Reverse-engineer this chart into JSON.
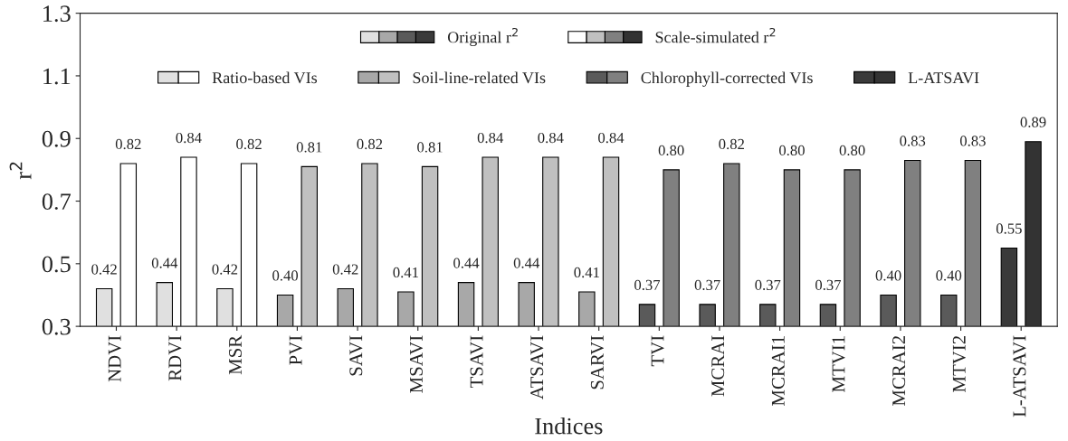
{
  "chart_data": {
    "type": "bar",
    "xlabel": "Indices",
    "ylabel": "r$^{2}$",
    "categories": [
      "NDVI",
      "RDVI",
      "MSR",
      "PVI",
      "SAVI",
      "MSAVI",
      "TSAVI",
      "ATSAVI",
      "SARVI",
      "TVI",
      "MCRAI",
      "MCRAI1",
      "MTVI1",
      "MCRAI2",
      "MTVI2",
      "L-ATSAVI"
    ],
    "series": [
      {
        "name": "Original r$^{2}$",
        "colors": [
          "#e0e0e0",
          "#e0e0e0",
          "#e0e0e0",
          "#a8a8a8",
          "#a8a8a8",
          "#a8a8a8",
          "#a8a8a8",
          "#a8a8a8",
          "#a8a8a8",
          "#5a5a5a",
          "#5a5a5a",
          "#5a5a5a",
          "#5a5a5a",
          "#5a5a5a",
          "#5a5a5a",
          "#3a3a3a"
        ],
        "values": [
          0.42,
          0.44,
          0.42,
          0.4,
          0.42,
          0.41,
          0.44,
          0.44,
          0.41,
          0.37,
          0.37,
          0.37,
          0.37,
          0.4,
          0.4,
          0.55
        ],
        "value_labels": [
          "0.42",
          "0.44",
          "0.42",
          "0.40",
          "0.42",
          "0.41",
          "0.44",
          "0.44",
          "0.41",
          "0.37",
          "0.37",
          "0.37",
          "0.37",
          "0.40",
          "0.40",
          "0.55"
        ]
      },
      {
        "name": "Scale-simulated r$^{2}$",
        "colors": [
          "#ffffff",
          "#ffffff",
          "#ffffff",
          "#c0c0c0",
          "#c0c0c0",
          "#c0c0c0",
          "#c0c0c0",
          "#c0c0c0",
          "#c0c0c0",
          "#808080",
          "#808080",
          "#808080",
          "#808080",
          "#808080",
          "#808080",
          "#333333"
        ],
        "values": [
          0.82,
          0.84,
          0.82,
          0.81,
          0.82,
          0.81,
          0.84,
          0.84,
          0.84,
          0.8,
          0.82,
          0.8,
          0.8,
          0.83,
          0.83,
          0.89
        ],
        "value_labels": [
          "0.82",
          "0.84",
          "0.82",
          "0.81",
          "0.82",
          "0.81",
          "0.84",
          "0.84",
          "0.84",
          "0.80",
          "0.82",
          "0.80",
          "0.80",
          "0.83",
          "0.83",
          "0.89"
        ]
      }
    ],
    "annotations": [
      "Ratio-based VIs",
      "Soil-line-related VIs",
      "Chlorophyll-corrected VIs",
      "L-ATSAVI"
    ],
    "ylim": [
      0.3,
      1.3
    ],
    "yticks": [
      0.3,
      0.5,
      0.7,
      0.9,
      1.1,
      1.3
    ],
    "grid": false,
    "legend": "top"
  }
}
